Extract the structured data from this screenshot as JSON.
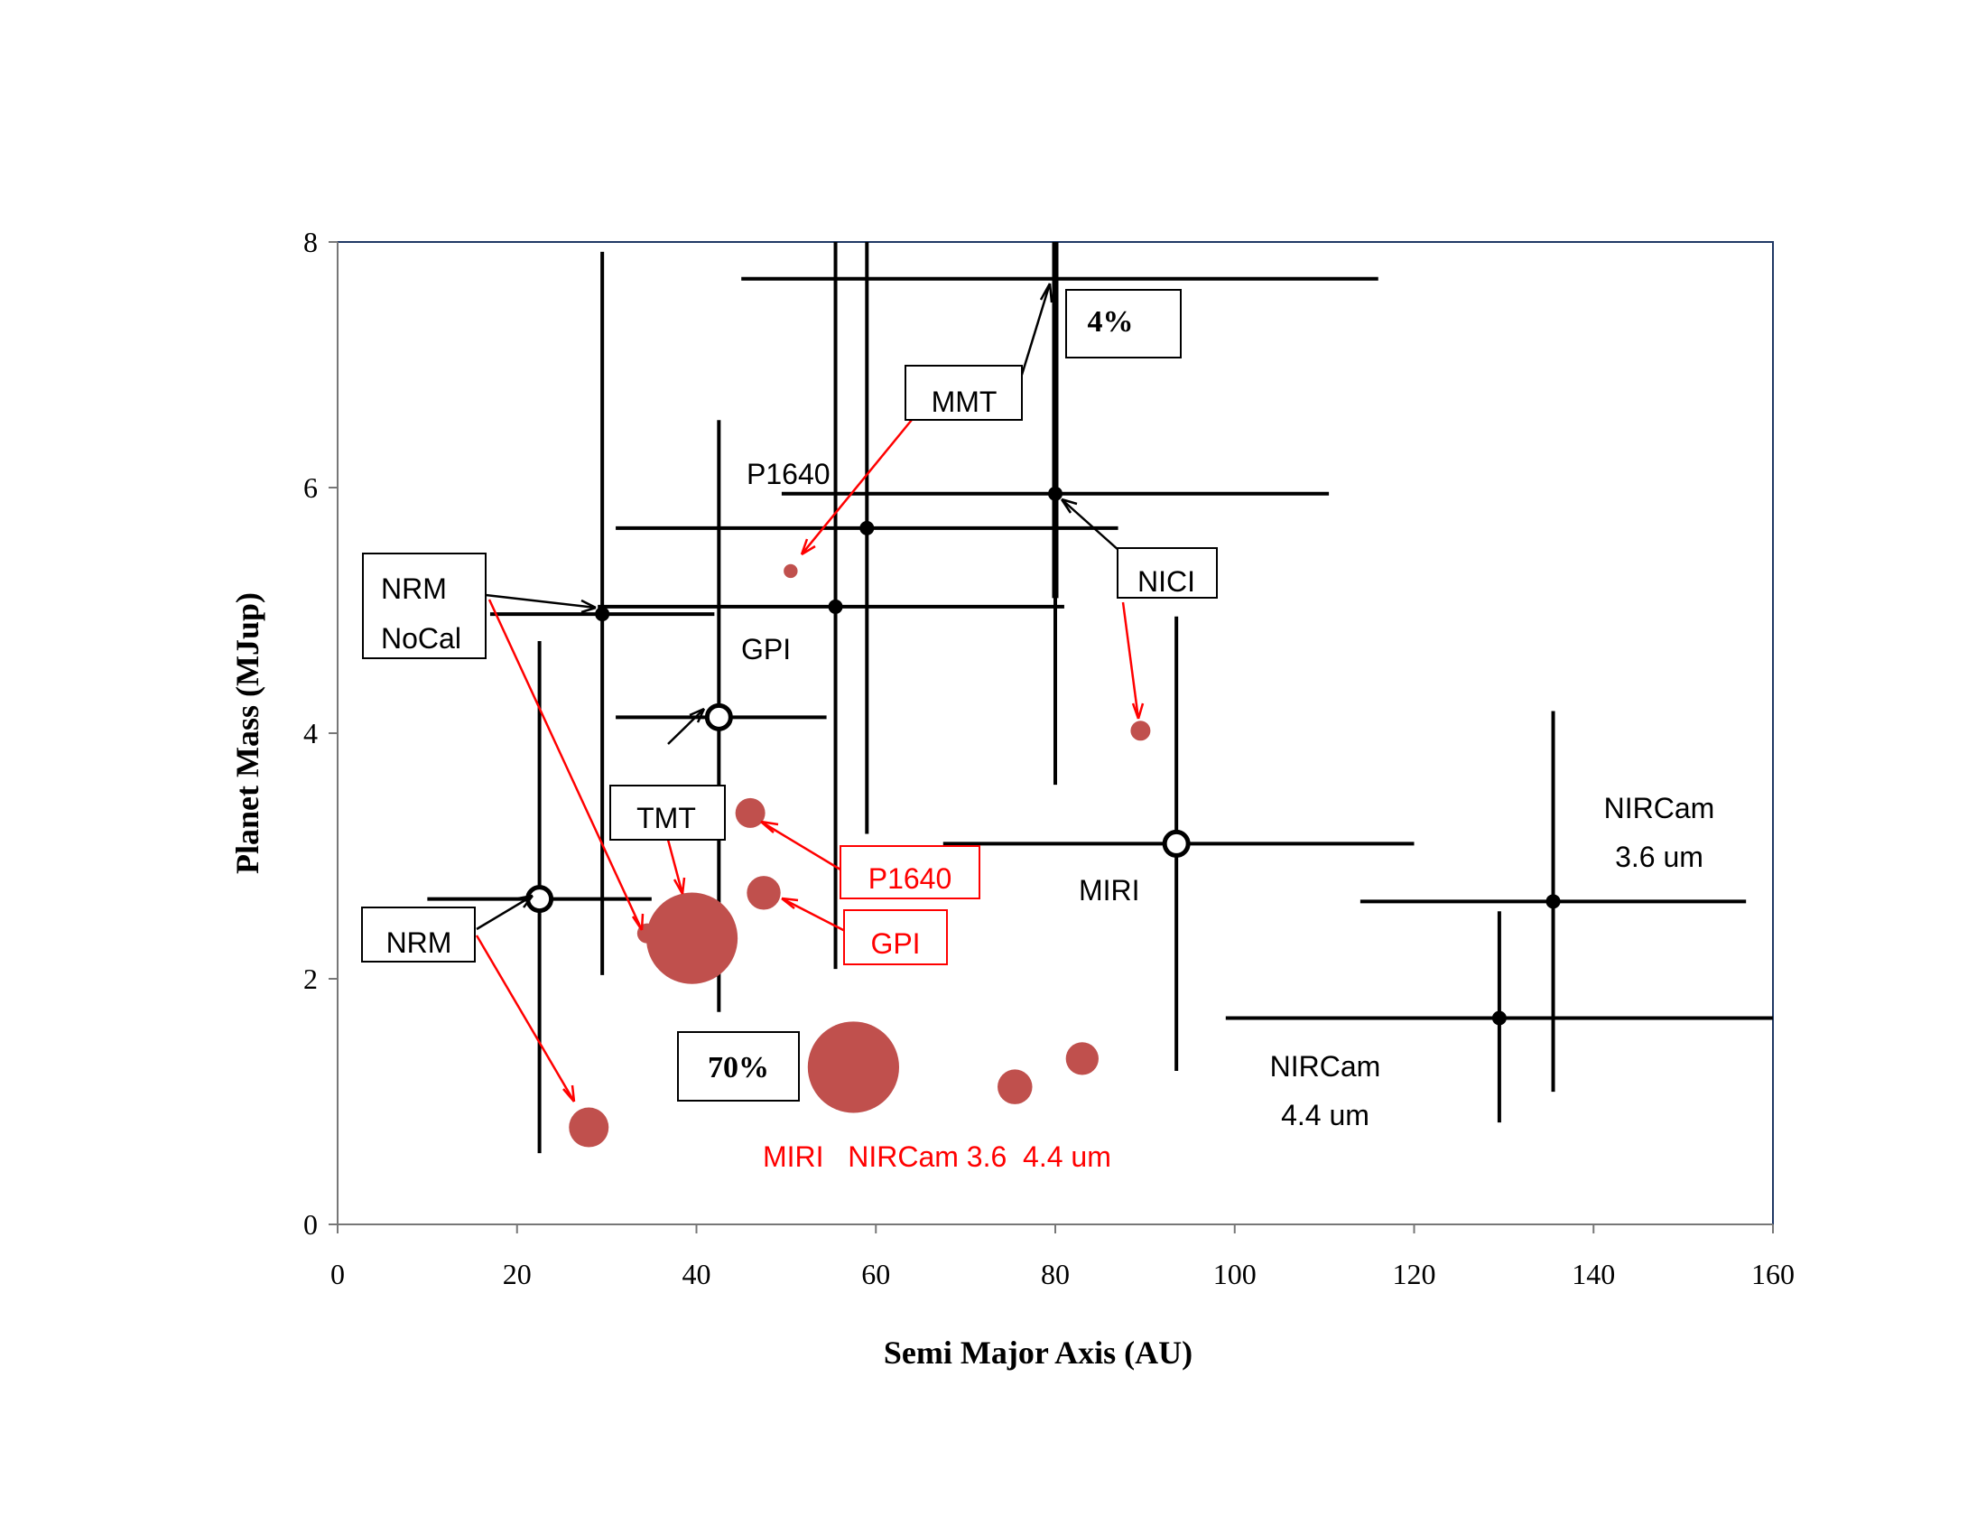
{
  "chart_data": {
    "type": "scatter",
    "title": "",
    "xlabel": "Semi Major Axis (AU)",
    "ylabel": "Planet Mass (MJup)",
    "xlim": [
      0,
      160
    ],
    "ylim": [
      0,
      8
    ],
    "xticks": [
      0,
      20,
      40,
      60,
      80,
      100,
      120,
      140,
      160
    ],
    "yticks": [
      0,
      2,
      4,
      6,
      8
    ],
    "colors": {
      "measured": "#000000",
      "predicted": "#c0504d",
      "predicted_label": "#ff0000"
    },
    "measured_series": [
      {
        "name": "NRM",
        "x": 22.5,
        "y": 2.65,
        "xerr": [
          10,
          35
        ],
        "yerr": [
          0.58,
          4.75
        ],
        "marker": "target"
      },
      {
        "name": "NRM NoCal",
        "x": 29.5,
        "y": 4.97,
        "xerr": [
          17,
          42
        ],
        "yerr": [
          2.03,
          7.92
        ],
        "marker": "dot"
      },
      {
        "name": "TMT",
        "x": 42.5,
        "y": 4.13,
        "xerr": [
          31,
          54.5
        ],
        "yerr": [
          1.73,
          6.55
        ],
        "marker": "target"
      },
      {
        "name": "GPI",
        "x": 55.5,
        "y": 5.03,
        "xerr": [
          29,
          81
        ],
        "yerr": [
          2.08,
          8.0
        ],
        "marker": "dot"
      },
      {
        "name": "P1640",
        "x": 59,
        "y": 5.67,
        "xerr": [
          31,
          87
        ],
        "yerr": [
          3.18,
          8.0
        ],
        "marker": "dot"
      },
      {
        "name": "MMT",
        "x": 80,
        "y": 7.7,
        "xerr": [
          45,
          116
        ],
        "yerr": [
          5.1,
          8.0
        ],
        "marker": "none"
      },
      {
        "name": "NICI",
        "x": 80,
        "y": 5.95,
        "xerr": [
          49.5,
          110.5
        ],
        "yerr": [
          3.58,
          8.0
        ],
        "marker": "dot"
      },
      {
        "name": "MIRI",
        "x": 93.5,
        "y": 3.1,
        "xerr": [
          67.5,
          120
        ],
        "yerr": [
          1.25,
          4.95
        ],
        "marker": "target"
      },
      {
        "name": "NIRCam 3.6 um",
        "x": 135.5,
        "y": 2.63,
        "xerr": [
          114,
          157
        ],
        "yerr": [
          1.08,
          4.18
        ],
        "marker": "dot"
      },
      {
        "name": "NIRCam 4.4 um",
        "x": 129.5,
        "y": 1.68,
        "xerr": [
          99,
          160
        ],
        "yerr": [
          0.83,
          2.55
        ],
        "marker": "dot"
      }
    ],
    "predicted_series": [
      {
        "name": "MMT",
        "x": 50.5,
        "y": 5.32,
        "size": 0.7
      },
      {
        "name": "NICI",
        "x": 89.5,
        "y": 4.02,
        "size": 1.0
      },
      {
        "name": "P1640",
        "x": 46,
        "y": 3.35,
        "size": 1.5
      },
      {
        "name": "GPI",
        "x": 47.5,
        "y": 2.7,
        "size": 1.7
      },
      {
        "name": "NRM NoCal",
        "x": 34.5,
        "y": 2.37,
        "size": 1.0
      },
      {
        "name": "TMT",
        "x": 39.5,
        "y": 2.33,
        "size": 4.6
      },
      {
        "name": "NRM",
        "x": 28,
        "y": 0.79,
        "size": 2.0
      },
      {
        "name": "MIRI",
        "x": 57.5,
        "y": 1.28,
        "size": 4.6
      },
      {
        "name": "NIRCam 3.6 um",
        "x": 75.5,
        "y": 1.12,
        "size": 1.75
      },
      {
        "name": "NIRCam 4.4 um",
        "x": 83,
        "y": 1.35,
        "size": 1.65
      }
    ],
    "labels": {
      "mmt": "MMT",
      "p1640_black": "P1640",
      "nrm_nocal_1": "NRM",
      "nrm_nocal_2": "NoCal",
      "gpi_black": "GPI",
      "nici": "NICI",
      "tmt": "TMT",
      "p1640_red": "P1640",
      "gpi_red": "GPI",
      "nrm": "NRM",
      "miri_black": "MIRI",
      "nircam36_1": "NIRCam",
      "nircam36_2": "3.6 um",
      "nircam44_1": "NIRCam",
      "nircam44_2": "4.4 um",
      "red_bottom": "MIRI   NIRCam 3.6  4.4 um",
      "pct4": "4%",
      "pct70": "70%"
    }
  }
}
